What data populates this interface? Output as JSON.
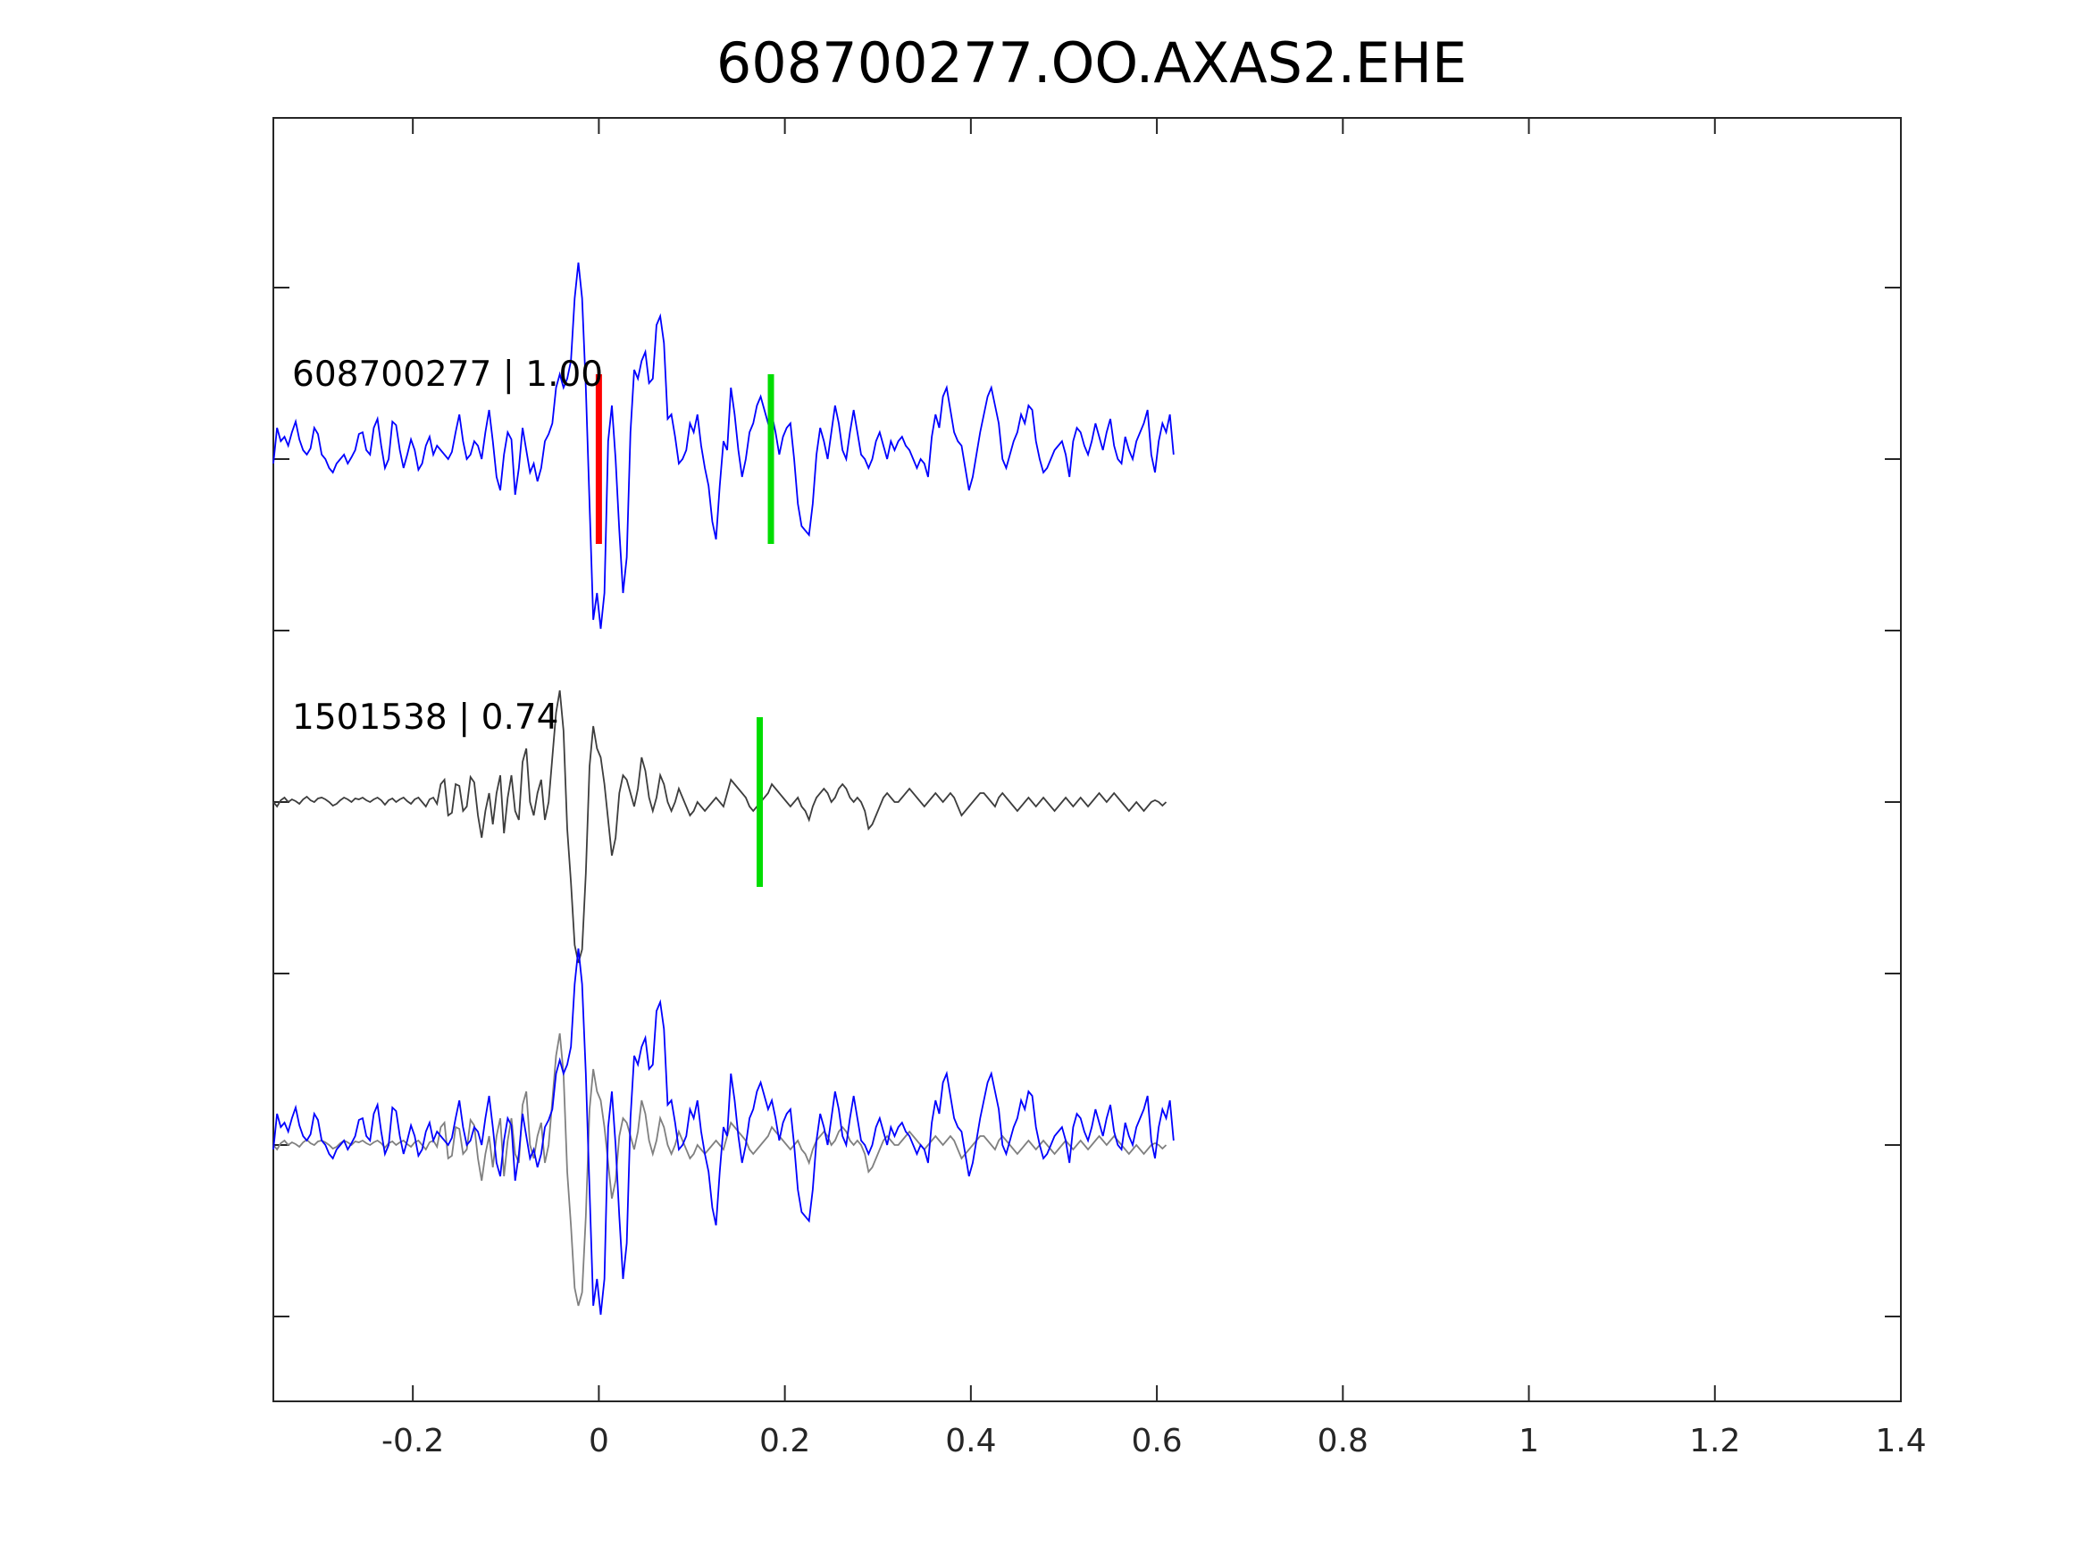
{
  "chart_data": {
    "type": "line",
    "title": "608700277.OO.AXAS2.EHE",
    "xlabel": "",
    "ylabel": "",
    "xlim": [
      -0.35,
      1.4
    ],
    "x_ticks": [
      -0.2,
      0,
      0.2,
      0.4,
      0.6,
      0.8,
      1,
      1.2,
      1.4
    ],
    "x_tick_labels": [
      "-0.2",
      "0",
      "0.2",
      "0.4",
      "0.6",
      "0.8",
      "1",
      "1.2",
      "1.4"
    ],
    "y_ticks_shown": true,
    "y_tick_labels": [],
    "grid": false,
    "panels": [
      {
        "id": "target",
        "label": "608700277 | 1.00",
        "color": "#0000ff"
      },
      {
        "id": "template",
        "label": "1501538 | 0.74",
        "color": "#3d3d3d"
      },
      {
        "id": "overlay",
        "label": "",
        "colors": [
          "#0000ff",
          "#808080"
        ]
      }
    ],
    "picks": [
      {
        "panel": "target",
        "time": 0.0,
        "color": "#ff0000"
      },
      {
        "panel": "target",
        "time": 0.185,
        "color": "#00dd00"
      },
      {
        "panel": "template",
        "time": 0.173,
        "color": "#00dd00"
      }
    ],
    "series": [
      {
        "id": "target",
        "color": "#0000ff",
        "x_start": -0.35,
        "dt": 0.004,
        "values": [
          -0.05,
          0.35,
          0.2,
          0.25,
          0.15,
          0.3,
          0.42,
          0.22,
          0.1,
          0.05,
          0.12,
          0.35,
          0.28,
          0.05,
          0.0,
          -0.1,
          -0.15,
          -0.05,
          0.0,
          0.05,
          -0.05,
          0.02,
          0.1,
          0.28,
          0.3,
          0.1,
          0.05,
          0.35,
          0.45,
          0.15,
          -0.1,
          0.0,
          0.42,
          0.38,
          0.1,
          -0.1,
          0.05,
          0.22,
          0.1,
          -0.12,
          -0.05,
          0.15,
          0.25,
          0.05,
          0.15,
          0.1,
          0.05,
          0.0,
          0.08,
          0.3,
          0.5,
          0.2,
          0.0,
          0.05,
          0.2,
          0.15,
          0.0,
          0.3,
          0.55,
          0.2,
          -0.2,
          -0.35,
          0.05,
          0.3,
          0.22,
          -0.4,
          -0.1,
          0.35,
          0.1,
          -0.15,
          -0.05,
          -0.25,
          -0.1,
          0.2,
          0.28,
          0.4,
          0.8,
          0.95,
          0.8,
          0.9,
          1.1,
          1.8,
          2.2,
          1.8,
          0.8,
          -0.5,
          -1.8,
          -1.5,
          -1.9,
          -1.5,
          0.2,
          0.6,
          0.0,
          -0.8,
          -1.5,
          -1.1,
          0.3,
          1.0,
          0.9,
          1.1,
          1.2,
          0.85,
          0.9,
          1.5,
          1.6,
          1.3,
          0.45,
          0.5,
          0.25,
          -0.05,
          0.0,
          0.1,
          0.4,
          0.3,
          0.5,
          0.15,
          -0.1,
          -0.3,
          -0.7,
          -0.9,
          -0.3,
          0.2,
          0.1,
          0.8,
          0.5,
          0.1,
          -0.2,
          0.0,
          0.3,
          0.4,
          0.6,
          0.7,
          0.55,
          0.4,
          0.5,
          0.3,
          0.05,
          0.25,
          0.35,
          0.4,
          0.0,
          -0.5,
          -0.75,
          -0.8,
          -0.85,
          -0.5,
          0.05,
          0.35,
          0.2,
          0.0,
          0.3,
          0.6,
          0.4,
          0.1,
          0.0,
          0.3,
          0.55,
          0.3,
          0.05,
          0.0,
          -0.1,
          0.0,
          0.2,
          0.3,
          0.15,
          0.0,
          0.2,
          0.1,
          0.2,
          0.25,
          0.15,
          0.1,
          0.0,
          -0.1,
          0.0,
          -0.05,
          -0.2,
          0.25,
          0.5,
          0.35,
          0.7,
          0.8,
          0.55,
          0.3,
          0.2,
          0.15,
          -0.1,
          -0.35,
          -0.2,
          0.05,
          0.3,
          0.5,
          0.7,
          0.8,
          0.6,
          0.4,
          0.0,
          -0.1,
          0.05,
          0.2,
          0.3,
          0.5,
          0.4,
          0.6,
          0.55,
          0.2,
          0.0,
          -0.15,
          -0.1,
          0.0,
          0.1,
          0.15,
          0.2,
          0.05,
          -0.2,
          0.2,
          0.35,
          0.3,
          0.15,
          0.05,
          0.2,
          0.4,
          0.25,
          0.1,
          0.3,
          0.45,
          0.15,
          0.0,
          -0.05,
          0.25,
          0.1,
          0.0,
          0.2,
          0.3,
          0.4,
          0.55,
          0.05,
          -0.15,
          0.2,
          0.4,
          0.3,
          0.5,
          0.05
        ],
        "note": ""
      },
      {
        "id": "template",
        "color": "#3d3d3d",
        "x_start": -0.35,
        "dt": 0.004,
        "values": [
          0.0,
          -0.05,
          0.02,
          0.05,
          0.0,
          0.03,
          0.01,
          -0.02,
          0.03,
          0.06,
          0.02,
          0.0,
          0.04,
          0.05,
          0.03,
          0.0,
          -0.04,
          -0.02,
          0.02,
          0.05,
          0.03,
          0.0,
          0.04,
          0.03,
          0.05,
          0.02,
          0.0,
          0.03,
          0.05,
          0.02,
          -0.03,
          0.02,
          0.04,
          0.0,
          0.03,
          0.05,
          0.01,
          -0.02,
          0.03,
          0.05,
          0.0,
          -0.05,
          0.03,
          0.05,
          -0.02,
          0.2,
          0.25,
          -0.15,
          -0.12,
          0.2,
          0.18,
          -0.1,
          -0.05,
          0.28,
          0.22,
          -0.15,
          -0.4,
          -0.1,
          0.1,
          -0.25,
          0.1,
          0.3,
          -0.35,
          0.05,
          0.3,
          -0.1,
          -0.2,
          0.45,
          0.6,
          0.0,
          -0.15,
          0.1,
          0.25,
          -0.2,
          0.0,
          0.5,
          1.0,
          1.25,
          0.8,
          -0.3,
          -0.9,
          -1.6,
          -1.8,
          -1.65,
          -0.8,
          0.4,
          0.85,
          0.6,
          0.5,
          0.2,
          -0.2,
          -0.6,
          -0.4,
          0.1,
          0.3,
          0.25,
          0.1,
          -0.05,
          0.15,
          0.5,
          0.35,
          0.05,
          -0.1,
          0.05,
          0.3,
          0.2,
          0.0,
          -0.1,
          0.0,
          0.15,
          0.05,
          -0.05,
          -0.15,
          -0.1,
          0.0,
          -0.05,
          -0.1,
          -0.05,
          0.0,
          0.05,
          0.0,
          -0.05,
          0.1,
          0.25,
          0.2,
          0.15,
          0.1,
          0.05,
          -0.05,
          -0.1,
          -0.05,
          0.0,
          0.05,
          0.1,
          0.2,
          0.15,
          0.1,
          0.05,
          0.0,
          -0.05,
          0.0,
          0.05,
          -0.05,
          -0.1,
          -0.2,
          -0.05,
          0.05,
          0.1,
          0.15,
          0.1,
          0.0,
          0.05,
          0.15,
          0.2,
          0.15,
          0.05,
          0.0,
          0.05,
          0.0,
          -0.1,
          -0.3,
          -0.25,
          -0.15,
          -0.05,
          0.05,
          0.1,
          0.05,
          0.0,
          0.0,
          0.05,
          0.1,
          0.15,
          0.1,
          0.05,
          0.0,
          -0.05,
          0.0,
          0.05,
          0.1,
          0.05,
          0.0,
          0.05,
          0.1,
          0.05,
          -0.05,
          -0.15,
          -0.1,
          -0.05,
          0.0,
          0.05,
          0.1,
          0.1,
          0.05,
          0.0,
          -0.05,
          0.05,
          0.1,
          0.05,
          0.0,
          -0.05,
          -0.1,
          -0.05,
          0.0,
          0.05,
          0.0,
          -0.05,
          0.0,
          0.05,
          0.0,
          -0.05,
          -0.1,
          -0.05,
          0.0,
          0.05,
          0.0,
          -0.05,
          0.0,
          0.05,
          0.0,
          -0.05,
          0.0,
          0.05,
          0.1,
          0.05,
          0.0,
          0.05,
          0.1,
          0.05,
          0.0,
          -0.05,
          -0.1,
          -0.05,
          0.0,
          -0.05,
          -0.1,
          -0.05,
          0.0,
          0.02,
          0.0,
          -0.04,
          0.0
        ],
        "note": ""
      }
    ]
  }
}
